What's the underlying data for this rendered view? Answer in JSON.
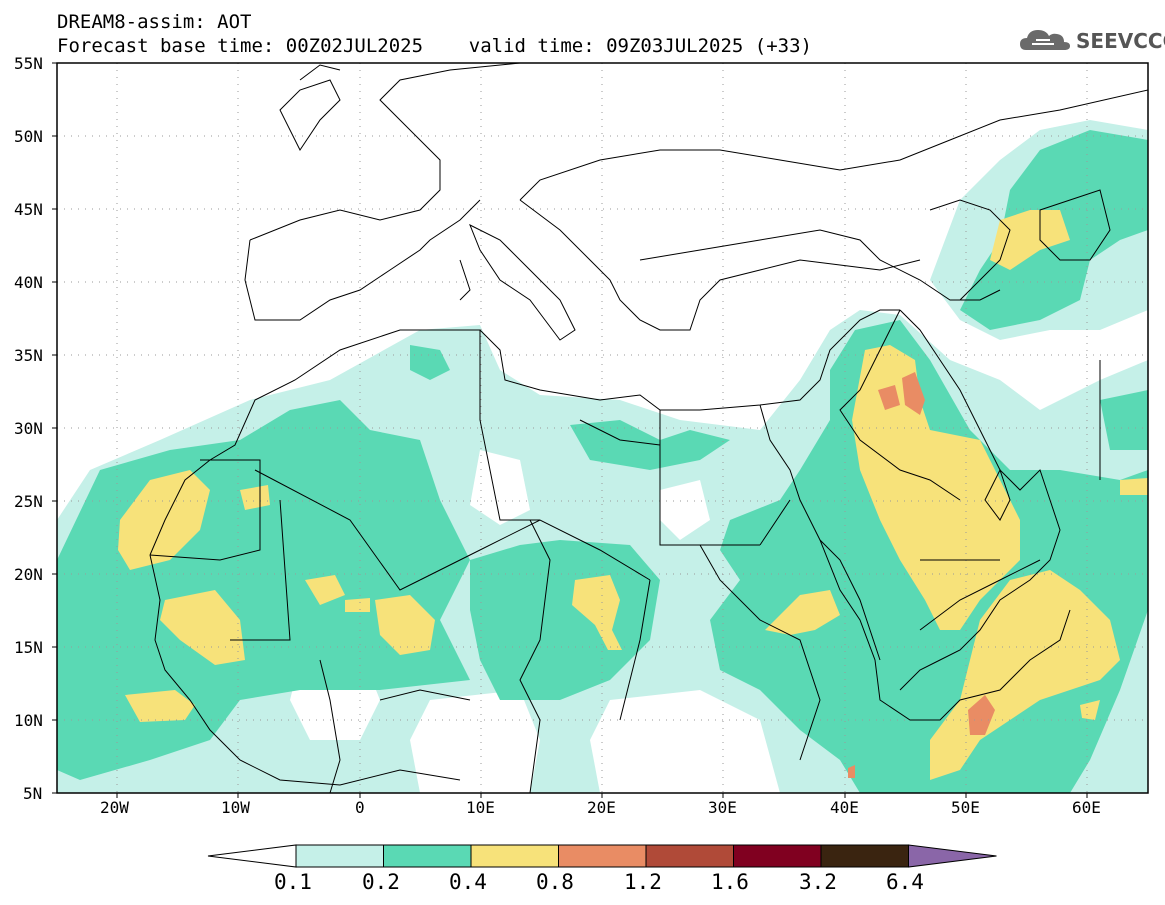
{
  "header": {
    "line1": "DREAM8-assim: AOT",
    "line2": "Forecast base time: 00Z02JUL2025    valid time: 09Z03JUL2025 (+33)"
  },
  "logo": {
    "text": "SEEVCCC",
    "icon": "cloud-icon"
  },
  "map": {
    "projection": "lat-lon",
    "lon_range": [
      -25,
      65
    ],
    "lat_range": [
      5,
      55
    ],
    "lat_labels": [
      "55N",
      "50N",
      "45N",
      "40N",
      "35N",
      "30N",
      "25N",
      "20N",
      "15N",
      "10N",
      "5N"
    ],
    "lon_labels": [
      "20W",
      "10W",
      "0",
      "10E",
      "20E",
      "30E",
      "40E",
      "50E",
      "60E"
    ],
    "grid": "dotted"
  },
  "colorbar": {
    "labels": [
      "0.1",
      "0.2",
      "0.4",
      "0.8",
      "1.2",
      "1.6",
      "3.2",
      "6.4"
    ],
    "colors": [
      "#ffffff",
      "#c5f0e8",
      "#5ad9b4",
      "#f7e27a",
      "#e98c64",
      "#b04a38",
      "#800020",
      "#3a2410",
      "#8a66a8"
    ]
  },
  "colors": {
    "c01": "#c5f0e8",
    "c02": "#5ad9b4",
    "c04": "#f7e27a",
    "c08": "#e98c64",
    "c12": "#b04a38"
  }
}
